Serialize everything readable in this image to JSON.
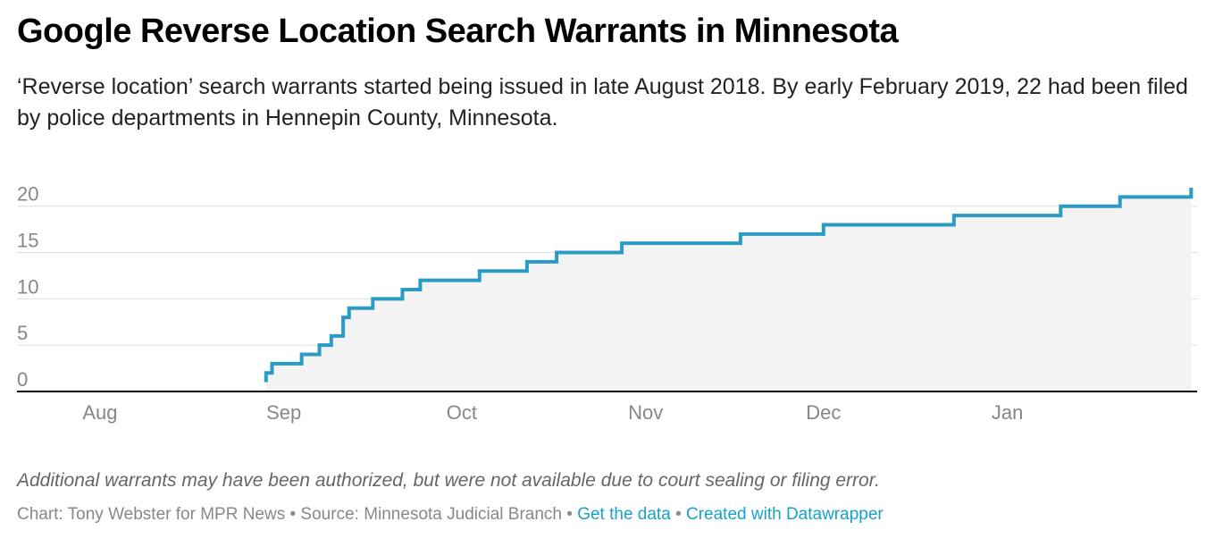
{
  "header": {
    "title": "Google Reverse Location Search Warrants in Minnesota",
    "subtitle": "‘Reverse location’ search warrants started being issued in late August 2018. By early February 2019, 22 had been filed by police departments in Hennepin County, Minnesota."
  },
  "footer": {
    "notes": "Additional warrants may have been authorized, but were not available due to court sealing or filing error.",
    "source_prefix": "Chart: Tony Webster for MPR News • Source: Minnesota Judicial Branch •",
    "get_data_link": "Get the data",
    "separator": "•",
    "created_with_link": "Created with Datawrapper"
  },
  "colors": {
    "line": "#2a9bc5",
    "area": "#f3f3f3",
    "grid": "#dddddd",
    "axis": "#000000",
    "tick_text": "#878787",
    "link": "#18a1cd"
  },
  "chart_data": {
    "type": "area",
    "step": true,
    "title": "Google Reverse Location Search Warrants in Minnesota",
    "xlabel": "",
    "ylabel": "",
    "xlim": [
      "2018-07-18",
      "2019-02-02"
    ],
    "ylim": [
      0,
      22
    ],
    "grid": true,
    "x_ticks": [
      {
        "date": "2018-08-01",
        "label": "Aug"
      },
      {
        "date": "2018-09-01",
        "label": "Sep"
      },
      {
        "date": "2018-10-01",
        "label": "Oct"
      },
      {
        "date": "2018-11-01",
        "label": "Nov"
      },
      {
        "date": "2018-12-01",
        "label": "Dec"
      },
      {
        "date": "2019-01-01",
        "label": "Jan"
      }
    ],
    "y_ticks": [
      0,
      5,
      10,
      15,
      20
    ],
    "points": [
      {
        "x": "2018-08-29",
        "y": 1
      },
      {
        "x": "2018-08-29",
        "y": 2
      },
      {
        "x": "2018-08-30",
        "y": 3
      },
      {
        "x": "2018-09-04",
        "y": 4
      },
      {
        "x": "2018-09-07",
        "y": 5
      },
      {
        "x": "2018-09-09",
        "y": 6
      },
      {
        "x": "2018-09-11",
        "y": 8
      },
      {
        "x": "2018-09-12",
        "y": 9
      },
      {
        "x": "2018-09-16",
        "y": 10
      },
      {
        "x": "2018-09-21",
        "y": 11
      },
      {
        "x": "2018-09-24",
        "y": 12
      },
      {
        "x": "2018-10-04",
        "y": 13
      },
      {
        "x": "2018-10-12",
        "y": 14
      },
      {
        "x": "2018-10-17",
        "y": 15
      },
      {
        "x": "2018-10-28",
        "y": 16
      },
      {
        "x": "2018-11-17",
        "y": 17
      },
      {
        "x": "2018-12-01",
        "y": 18
      },
      {
        "x": "2018-12-23",
        "y": 19
      },
      {
        "x": "2019-01-10",
        "y": 20
      },
      {
        "x": "2019-01-20",
        "y": 21
      },
      {
        "x": "2019-02-01",
        "y": 22
      }
    ]
  }
}
